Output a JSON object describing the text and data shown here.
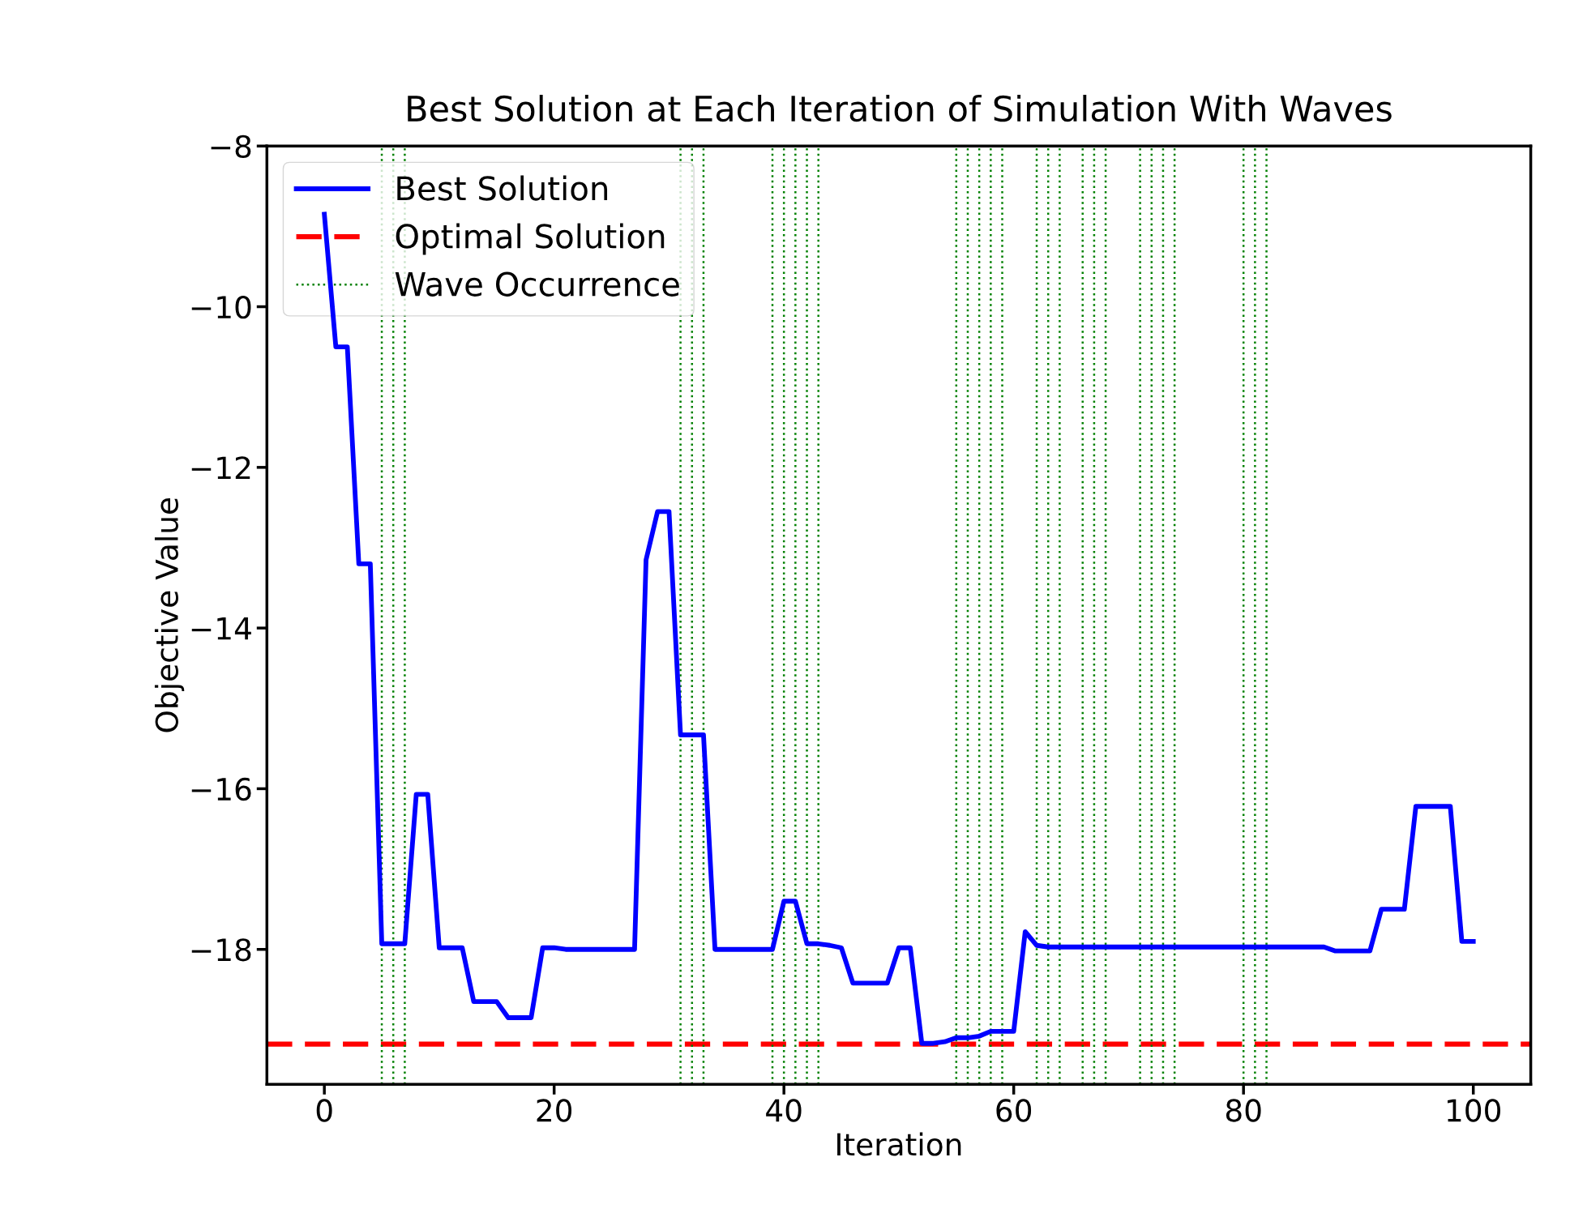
{
  "chart_data": {
    "type": "line",
    "title": "Best Solution at Each Iteration of Simulation With Waves",
    "xlabel": "Iteration",
    "ylabel": "Objective Value",
    "x": [
      0,
      1,
      2,
      3,
      4,
      5,
      6,
      7,
      8,
      9,
      10,
      11,
      12,
      13,
      14,
      15,
      16,
      17,
      18,
      19,
      20,
      21,
      22,
      23,
      24,
      25,
      26,
      27,
      28,
      29,
      30,
      31,
      32,
      33,
      34,
      35,
      36,
      37,
      38,
      39,
      40,
      41,
      42,
      43,
      44,
      45,
      46,
      47,
      48,
      49,
      50,
      51,
      52,
      53,
      54,
      55,
      56,
      57,
      58,
      59,
      60,
      61,
      62,
      63,
      64,
      65,
      66,
      67,
      68,
      69,
      70,
      71,
      72,
      73,
      74,
      75,
      76,
      77,
      78,
      79,
      80,
      81,
      82,
      83,
      84,
      85,
      86,
      87,
      88,
      89,
      90,
      91,
      92,
      93,
      94,
      95,
      96,
      97,
      98,
      99,
      100
    ],
    "series": [
      {
        "name": "Best Solution",
        "color": "#0000ff",
        "values": [
          -8.85,
          -10.5,
          -10.5,
          -13.2,
          -13.2,
          -17.93,
          -17.93,
          -17.93,
          -16.07,
          -16.07,
          -17.98,
          -17.98,
          -17.98,
          -18.65,
          -18.65,
          -18.65,
          -18.85,
          -18.85,
          -18.85,
          -17.98,
          -17.98,
          -18.0,
          -18.0,
          -18.0,
          -18.0,
          -18.0,
          -18.0,
          -18.0,
          -13.15,
          -12.55,
          -12.55,
          -15.33,
          -15.33,
          -15.33,
          -18.0,
          -18.0,
          -18.0,
          -18.0,
          -18.0,
          -18.0,
          -17.4,
          -17.4,
          -17.93,
          -17.93,
          -17.95,
          -17.98,
          -18.42,
          -18.42,
          -18.42,
          -18.42,
          -17.98,
          -17.98,
          -19.17,
          -19.17,
          -19.15,
          -19.1,
          -19.1,
          -19.08,
          -19.02,
          -19.02,
          -19.02,
          -17.78,
          -17.95,
          -17.97,
          -17.97,
          -17.97,
          -17.97,
          -17.97,
          -17.97,
          -17.97,
          -17.97,
          -17.97,
          -17.97,
          -17.97,
          -17.97,
          -17.97,
          -17.97,
          -17.97,
          -17.97,
          -17.97,
          -17.97,
          -17.97,
          -17.97,
          -17.97,
          -17.97,
          -17.97,
          -17.97,
          -17.97,
          -18.02,
          -18.02,
          -18.02,
          -18.02,
          -17.5,
          -17.5,
          -17.5,
          -16.22,
          -16.22,
          -16.22,
          -16.22,
          -17.9,
          -17.9
        ]
      }
    ],
    "ref_lines": [
      {
        "axis": "y",
        "value": -19.18,
        "label": "Optimal Solution",
        "color": "#ff0000",
        "line_style": "dashed"
      },
      {
        "axis": "x",
        "value": 5,
        "label": "Wave Occurrence",
        "color": "#008000",
        "line_style": "dotted"
      },
      {
        "axis": "x",
        "value": 6,
        "color": "#008000",
        "line_style": "dotted"
      },
      {
        "axis": "x",
        "value": 7,
        "color": "#008000",
        "line_style": "dotted"
      },
      {
        "axis": "x",
        "value": 31,
        "color": "#008000",
        "line_style": "dotted"
      },
      {
        "axis": "x",
        "value": 32,
        "color": "#008000",
        "line_style": "dotted"
      },
      {
        "axis": "x",
        "value": 33,
        "color": "#008000",
        "line_style": "dotted"
      },
      {
        "axis": "x",
        "value": 39,
        "color": "#008000",
        "line_style": "dotted"
      },
      {
        "axis": "x",
        "value": 40,
        "color": "#008000",
        "line_style": "dotted"
      },
      {
        "axis": "x",
        "value": 41,
        "color": "#008000",
        "line_style": "dotted"
      },
      {
        "axis": "x",
        "value": 42,
        "color": "#008000",
        "line_style": "dotted"
      },
      {
        "axis": "x",
        "value": 43,
        "color": "#008000",
        "line_style": "dotted"
      },
      {
        "axis": "x",
        "value": 55,
        "color": "#008000",
        "line_style": "dotted"
      },
      {
        "axis": "x",
        "value": 56,
        "color": "#008000",
        "line_style": "dotted"
      },
      {
        "axis": "x",
        "value": 57,
        "color": "#008000",
        "line_style": "dotted"
      },
      {
        "axis": "x",
        "value": 58,
        "color": "#008000",
        "line_style": "dotted"
      },
      {
        "axis": "x",
        "value": 59,
        "color": "#008000",
        "line_style": "dotted"
      },
      {
        "axis": "x",
        "value": 62,
        "color": "#008000",
        "line_style": "dotted"
      },
      {
        "axis": "x",
        "value": 63,
        "color": "#008000",
        "line_style": "dotted"
      },
      {
        "axis": "x",
        "value": 64,
        "color": "#008000",
        "line_style": "dotted"
      },
      {
        "axis": "x",
        "value": 66,
        "color": "#008000",
        "line_style": "dotted"
      },
      {
        "axis": "x",
        "value": 67,
        "color": "#008000",
        "line_style": "dotted"
      },
      {
        "axis": "x",
        "value": 68,
        "color": "#008000",
        "line_style": "dotted"
      },
      {
        "axis": "x",
        "value": 71,
        "color": "#008000",
        "line_style": "dotted"
      },
      {
        "axis": "x",
        "value": 72,
        "color": "#008000",
        "line_style": "dotted"
      },
      {
        "axis": "x",
        "value": 73,
        "color": "#008000",
        "line_style": "dotted"
      },
      {
        "axis": "x",
        "value": 74,
        "color": "#008000",
        "line_style": "dotted"
      },
      {
        "axis": "x",
        "value": 80,
        "color": "#008000",
        "line_style": "dotted"
      },
      {
        "axis": "x",
        "value": 81,
        "color": "#008000",
        "line_style": "dotted"
      },
      {
        "axis": "x",
        "value": 82,
        "color": "#008000",
        "line_style": "dotted"
      }
    ],
    "xlim": [
      -5,
      105
    ],
    "xticks": [
      0,
      20,
      40,
      60,
      80,
      100
    ],
    "ylim": [
      -19.68,
      -8
    ],
    "yticks": [
      {
        "value": -8,
        "label": "−8"
      },
      {
        "value": -10,
        "label": "−10"
      },
      {
        "value": -12,
        "label": "−12"
      },
      {
        "value": -14,
        "label": "−14"
      },
      {
        "value": -16,
        "label": "−16"
      },
      {
        "value": -18,
        "label": "−18"
      }
    ],
    "grid": false,
    "legend": "top left",
    "marker": "none",
    "line_style": "solid"
  }
}
